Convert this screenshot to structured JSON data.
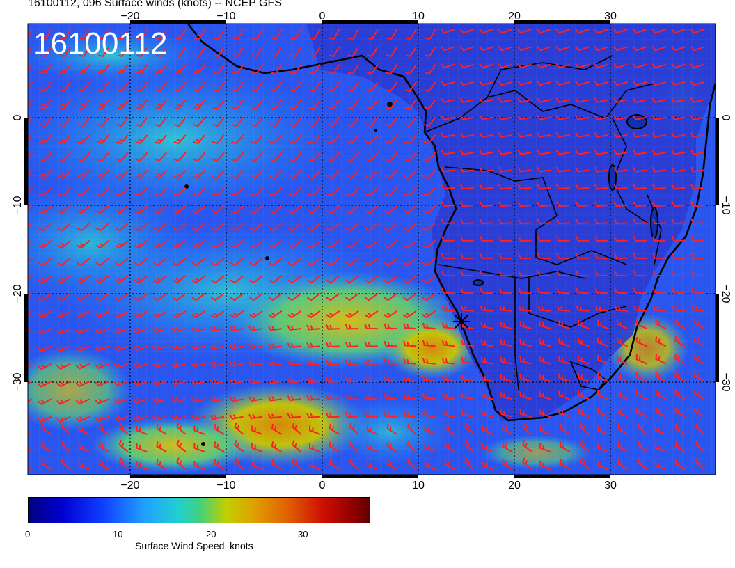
{
  "title": "16100112, 096 Surface winds (knots) -- NCEP GFS",
  "stamp": "16100112",
  "axes": {
    "lon_ticks": [
      "−20",
      "−10",
      "0",
      "10",
      "20",
      "30"
    ],
    "lat_ticks": [
      "0",
      "−10",
      "−20",
      "−30"
    ]
  },
  "colorbar": {
    "ticks": [
      "0",
      "10",
      "20",
      "30"
    ],
    "label": "Surface Wind Speed, knots",
    "colors": [
      "#000080",
      "#1040ff",
      "#20d0d0",
      "#c0d000",
      "#e06000",
      "#900000"
    ]
  },
  "barb_color": "#ff2020",
  "coast_color": "#000000",
  "storm_marker": "cross-star-icon"
}
